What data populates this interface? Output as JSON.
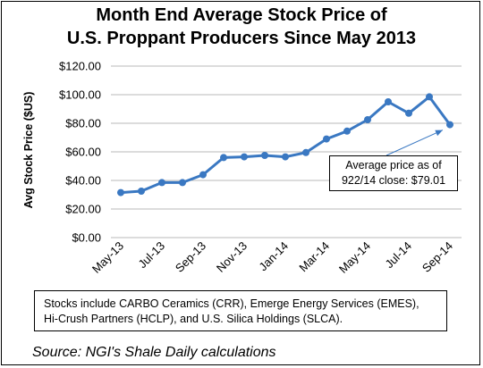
{
  "chart_data": {
    "type": "line",
    "title_lines": [
      "Month End Average Stock Price of",
      "U.S. Proppant Producers Since May 2013"
    ],
    "ylabel": "Avg Stock Price ($US)",
    "xlabel": "",
    "ylim": [
      0,
      120
    ],
    "y_ticks": [
      "$0.00",
      "$20.00",
      "$40.00",
      "$60.00",
      "$80.00",
      "$100.00",
      "$120.00"
    ],
    "x_tick_labels": [
      "May-13",
      "Jul-13",
      "Sep-13",
      "Nov-13",
      "Jan-14",
      "Mar-14",
      "May-14",
      "Jul-14",
      "Sep-14"
    ],
    "grid": true,
    "line_color": "#3a78c2",
    "series": [
      {
        "x": [
          "May-13",
          "Jun-13",
          "Jul-13",
          "Aug-13",
          "Sep-13",
          "Oct-13",
          "Nov-13",
          "Dec-13",
          "Jan-14",
          "Feb-14",
          "Mar-14",
          "Apr-14",
          "May-14",
          "Jun-14",
          "Jul-14",
          "Aug-14",
          "Sep-14"
        ],
        "values": [
          31.5,
          32.5,
          38.5,
          38.5,
          44,
          56,
          56.5,
          57.5,
          56.5,
          59.5,
          69,
          74.5,
          82.5,
          95,
          87,
          98.5,
          79.01
        ]
      }
    ],
    "annotation": {
      "lines": [
        "Average price as of",
        "922/14 close: $79.01"
      ],
      "points_to": "Sep-14"
    },
    "note_lines": [
      "Stocks include CARBO Ceramics (CRR), Emerge Energy Services (EMES),",
      "Hi-Crush Partners (HCLP), and U.S. Silica Holdings (SLCA)."
    ],
    "source": "Source: NGI's Shale Daily calculations"
  }
}
